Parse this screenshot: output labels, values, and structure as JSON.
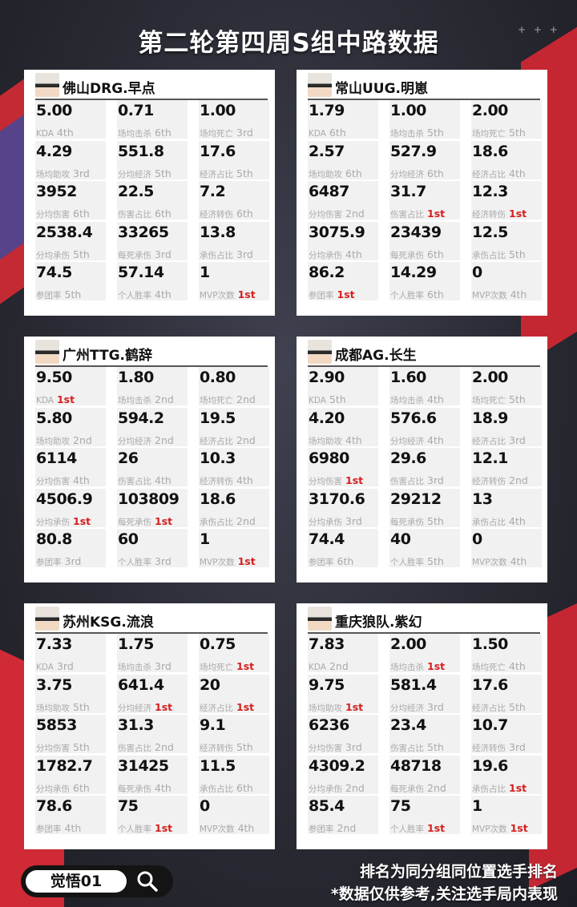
{
  "title": "第二轮第四周S组中路数据",
  "footer": {
    "logo": "觉悟01",
    "note1": "排名为同分组同位置选手排名",
    "note2": "*数据仅供参考,关注选手局内表现"
  },
  "cards": [
    {
      "name": "佛山DRG.早点",
      "stats": [
        {
          "v": "5.00",
          "l": "KDA",
          "r": "4th"
        },
        {
          "v": "0.71",
          "l": "场均击杀",
          "r": "6th"
        },
        {
          "v": "1.00",
          "l": "场均死亡",
          "r": "3rd"
        },
        {
          "v": "4.29",
          "l": "场均助攻",
          "r": "3rd"
        },
        {
          "v": "551.8",
          "l": "分均经济",
          "r": "5th"
        },
        {
          "v": "17.6",
          "l": "经济占比",
          "r": "5th"
        },
        {
          "v": "3952",
          "l": "分均伤害",
          "r": "6th"
        },
        {
          "v": "22.5",
          "l": "伤害占比",
          "r": "6th"
        },
        {
          "v": "7.2",
          "l": "经济转伤",
          "r": "6th"
        },
        {
          "v": "2538.4",
          "l": "分均承伤",
          "r": "5th"
        },
        {
          "v": "33265",
          "l": "每死承伤",
          "r": "3rd"
        },
        {
          "v": "13.8",
          "l": "承伤占比",
          "r": "3rd"
        },
        {
          "v": "74.5",
          "l": "参团率",
          "r": "5th"
        },
        {
          "v": "57.14",
          "l": "个人胜率",
          "r": "4th"
        },
        {
          "v": "1",
          "l": "MVP次数",
          "r": "1st"
        }
      ]
    },
    {
      "name": "常山UUG.明崽",
      "stats": [
        {
          "v": "1.79",
          "l": "KDA",
          "r": "6th"
        },
        {
          "v": "1.00",
          "l": "场均击杀",
          "r": "5th"
        },
        {
          "v": "2.00",
          "l": "场均死亡",
          "r": "5th"
        },
        {
          "v": "2.57",
          "l": "场均助攻",
          "r": "6th"
        },
        {
          "v": "527.9",
          "l": "分均经济",
          "r": "6th"
        },
        {
          "v": "18.6",
          "l": "经济占比",
          "r": "4th"
        },
        {
          "v": "6487",
          "l": "分均伤害",
          "r": "2nd"
        },
        {
          "v": "31.7",
          "l": "伤害占比",
          "r": "1st"
        },
        {
          "v": "12.3",
          "l": "经济转伤",
          "r": "1st"
        },
        {
          "v": "3075.9",
          "l": "分均承伤",
          "r": "4th"
        },
        {
          "v": "23439",
          "l": "每死承伤",
          "r": "6th"
        },
        {
          "v": "12.5",
          "l": "承伤占比",
          "r": "5th"
        },
        {
          "v": "86.2",
          "l": "参团率",
          "r": "1st"
        },
        {
          "v": "14.29",
          "l": "个人胜率",
          "r": "6th"
        },
        {
          "v": "0",
          "l": "MVP次数",
          "r": "4th"
        }
      ]
    },
    {
      "name": "广州TTG.鹤辞",
      "stats": [
        {
          "v": "9.50",
          "l": "KDA",
          "r": "1st"
        },
        {
          "v": "1.80",
          "l": "场均击杀",
          "r": "2nd"
        },
        {
          "v": "0.80",
          "l": "场均死亡",
          "r": "2nd"
        },
        {
          "v": "5.80",
          "l": "场均助攻",
          "r": "2nd"
        },
        {
          "v": "594.2",
          "l": "分均经济",
          "r": "2nd"
        },
        {
          "v": "19.5",
          "l": "经济占比",
          "r": "2nd"
        },
        {
          "v": "6114",
          "l": "分均伤害",
          "r": "4th"
        },
        {
          "v": "26",
          "l": "伤害占比",
          "r": "4th"
        },
        {
          "v": "10.3",
          "l": "经济转伤",
          "r": "4th"
        },
        {
          "v": "4506.9",
          "l": "分均承伤",
          "r": "1st"
        },
        {
          "v": "103809",
          "l": "每死承伤",
          "r": "1st"
        },
        {
          "v": "18.6",
          "l": "承伤占比",
          "r": "2nd"
        },
        {
          "v": "80.8",
          "l": "参团率",
          "r": "3rd"
        },
        {
          "v": "60",
          "l": "个人胜率",
          "r": "3rd"
        },
        {
          "v": "1",
          "l": "MVP次数",
          "r": "1st"
        }
      ]
    },
    {
      "name": "成都AG.长生",
      "stats": [
        {
          "v": "2.90",
          "l": "KDA",
          "r": "5th"
        },
        {
          "v": "1.60",
          "l": "场均击杀",
          "r": "4th"
        },
        {
          "v": "2.00",
          "l": "场均死亡",
          "r": "5th"
        },
        {
          "v": "4.20",
          "l": "场均助攻",
          "r": "4th"
        },
        {
          "v": "576.6",
          "l": "分均经济",
          "r": "4th"
        },
        {
          "v": "18.9",
          "l": "经济占比",
          "r": "3rd"
        },
        {
          "v": "6980",
          "l": "分均伤害",
          "r": "1st"
        },
        {
          "v": "29.6",
          "l": "伤害占比",
          "r": "3rd"
        },
        {
          "v": "12.1",
          "l": "经济转伤",
          "r": "2nd"
        },
        {
          "v": "3170.6",
          "l": "分均承伤",
          "r": "3rd"
        },
        {
          "v": "29212",
          "l": "每死承伤",
          "r": "5th"
        },
        {
          "v": "13",
          "l": "承伤占比",
          "r": "4th"
        },
        {
          "v": "74.4",
          "l": "参团率",
          "r": "6th"
        },
        {
          "v": "40",
          "l": "个人胜率",
          "r": "5th"
        },
        {
          "v": "0",
          "l": "MVP次数",
          "r": "4th"
        }
      ]
    },
    {
      "name": "苏州KSG.流浪",
      "stats": [
        {
          "v": "7.33",
          "l": "KDA",
          "r": "3rd"
        },
        {
          "v": "1.75",
          "l": "场均击杀",
          "r": "3rd"
        },
        {
          "v": "0.75",
          "l": "场均死亡",
          "r": "1st"
        },
        {
          "v": "3.75",
          "l": "场均助攻",
          "r": "5th"
        },
        {
          "v": "641.4",
          "l": "分均经济",
          "r": "1st"
        },
        {
          "v": "20",
          "l": "经济占比",
          "r": "1st"
        },
        {
          "v": "5853",
          "l": "分均伤害",
          "r": "5th"
        },
        {
          "v": "31.3",
          "l": "伤害占比",
          "r": "2nd"
        },
        {
          "v": "9.1",
          "l": "经济转伤",
          "r": "5th"
        },
        {
          "v": "1782.7",
          "l": "分均承伤",
          "r": "6th"
        },
        {
          "v": "31425",
          "l": "每死承伤",
          "r": "4th"
        },
        {
          "v": "11.5",
          "l": "承伤占比",
          "r": "6th"
        },
        {
          "v": "78.6",
          "l": "参团率",
          "r": "4th"
        },
        {
          "v": "75",
          "l": "个人胜率",
          "r": "1st"
        },
        {
          "v": "0",
          "l": "MVP次数",
          "r": "4th"
        }
      ]
    },
    {
      "name": "重庆狼队.紫幻",
      "stats": [
        {
          "v": "7.83",
          "l": "KDA",
          "r": "2nd"
        },
        {
          "v": "2.00",
          "l": "场均击杀",
          "r": "1st"
        },
        {
          "v": "1.50",
          "l": "场均死亡",
          "r": "4th"
        },
        {
          "v": "9.75",
          "l": "场均助攻",
          "r": "1st"
        },
        {
          "v": "581.4",
          "l": "分均经济",
          "r": "3rd"
        },
        {
          "v": "17.6",
          "l": "经济占比",
          "r": "5th"
        },
        {
          "v": "6236",
          "l": "分均伤害",
          "r": "3rd"
        },
        {
          "v": "23.4",
          "l": "伤害占比",
          "r": "5th"
        },
        {
          "v": "10.7",
          "l": "经济转伤",
          "r": "3rd"
        },
        {
          "v": "4309.2",
          "l": "分均承伤",
          "r": "2nd"
        },
        {
          "v": "48718",
          "l": "每死承伤",
          "r": "2nd"
        },
        {
          "v": "19.6",
          "l": "承伤占比",
          "r": "1st"
        },
        {
          "v": "85.4",
          "l": "参团率",
          "r": "2nd"
        },
        {
          "v": "75",
          "l": "个人胜率",
          "r": "1st"
        },
        {
          "v": "1",
          "l": "MVP次数",
          "r": "1st"
        }
      ]
    }
  ]
}
